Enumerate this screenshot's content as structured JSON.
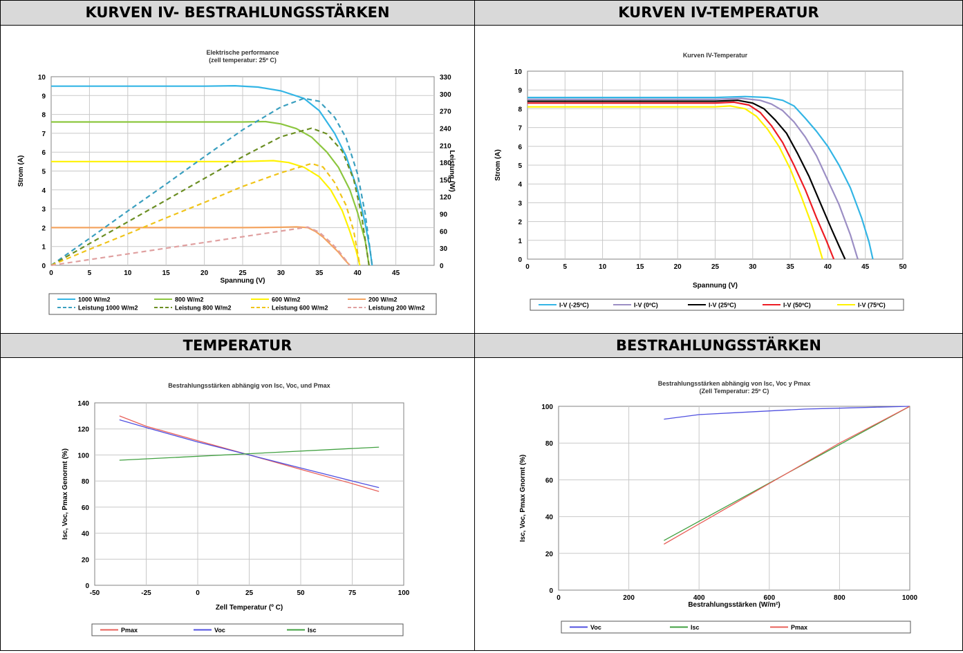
{
  "panels": [
    {
      "header": "KURVEN IV- BESTRAHLUNGSSTÄRKEN"
    },
    {
      "header": "KURVEN IV-TEMPERATUR"
    },
    {
      "header": "TEMPERATUR"
    },
    {
      "header": "BESTRAHLUNGSSTÄRKEN"
    }
  ],
  "chart_data": [
    {
      "type": "line",
      "title": "Elektrische performance",
      "subtitle": "(zell temperatur: 25º C)",
      "xlabel": "Spannung (V)",
      "ylabel": "Strom (A)",
      "y2label": "Leistung (W)",
      "xlim": [
        0,
        50
      ],
      "ylim": [
        0,
        10
      ],
      "y2lim": [
        0,
        330
      ],
      "xticks": [
        0,
        5,
        10,
        15,
        20,
        25,
        30,
        35,
        40,
        45
      ],
      "yticks": [
        0,
        1,
        2,
        3,
        4,
        5,
        6,
        7,
        8,
        9,
        10
      ],
      "y2ticks": [
        0,
        30,
        60,
        90,
        120,
        150,
        180,
        210,
        240,
        270,
        300,
        330
      ],
      "grid": true,
      "legend": "bottom",
      "series": [
        {
          "name": "1000 W/m2",
          "color": "#33b5e5",
          "dash": false,
          "axis": "left",
          "x": [
            0,
            20,
            24,
            27,
            30,
            33,
            35,
            37,
            38.5,
            40,
            41,
            41.6,
            41.9
          ],
          "y": [
            9.5,
            9.5,
            9.52,
            9.45,
            9.25,
            8.85,
            8.2,
            7.0,
            5.8,
            4.0,
            2.2,
            0.9,
            0
          ]
        },
        {
          "name": "800 W/m2",
          "color": "#8cc63f",
          "dash": false,
          "axis": "left",
          "x": [
            0,
            25,
            28,
            30,
            32,
            34,
            36,
            37.5,
            39,
            40,
            41,
            41.5
          ],
          "y": [
            7.6,
            7.6,
            7.62,
            7.5,
            7.25,
            6.8,
            6.0,
            5.2,
            4.0,
            2.8,
            1.3,
            0
          ]
        },
        {
          "name": "600 W/m2",
          "color": "#fff200",
          "dash": false,
          "axis": "left",
          "x": [
            0,
            25,
            29,
            31,
            33,
            35,
            36.5,
            38,
            39,
            39.8,
            40.3
          ],
          "y": [
            5.5,
            5.5,
            5.55,
            5.45,
            5.2,
            4.7,
            4.0,
            2.9,
            1.8,
            0.8,
            0
          ]
        },
        {
          "name": "200 W/m2",
          "color": "#f4a460",
          "dash": false,
          "axis": "left",
          "x": [
            0,
            25,
            30,
            32,
            33.5,
            34.5,
            35.5,
            36.5,
            37.5,
            38.3,
            39
          ],
          "y": [
            2.0,
            2.0,
            2.02,
            2.04,
            2.0,
            1.8,
            1.5,
            1.1,
            0.7,
            0.3,
            0
          ]
        },
        {
          "name": "Leistung 1000 W/m2",
          "color": "#3a9fbf",
          "dash": true,
          "axis": "right",
          "x": [
            0,
            5,
            10,
            15,
            20,
            25,
            30,
            33,
            35,
            37,
            38.5,
            40,
            41,
            41.9
          ],
          "y": [
            0,
            47,
            95,
            142,
            190,
            237,
            277,
            292,
            287,
            259,
            223,
            160,
            90,
            0
          ]
        },
        {
          "name": "Leistung 800 W/m2",
          "color": "#6b8e23",
          "dash": true,
          "axis": "right",
          "x": [
            0,
            5,
            10,
            15,
            20,
            25,
            30,
            34,
            36,
            38,
            39.5,
            40.5,
            41.5
          ],
          "y": [
            0,
            38,
            76,
            114,
            152,
            190,
            225,
            240,
            230,
            200,
            150,
            90,
            0
          ]
        },
        {
          "name": "Leistung 600 W/m2",
          "color": "#f0c419",
          "dash": true,
          "axis": "right",
          "x": [
            0,
            5,
            10,
            15,
            20,
            25,
            30,
            34,
            35.5,
            37,
            38.5,
            39.5,
            40.3
          ],
          "y": [
            0,
            28,
            55,
            83,
            110,
            138,
            162,
            178,
            172,
            145,
            105,
            60,
            0
          ]
        },
        {
          "name": "Leistung 200 W/m2",
          "color": "#e0a0a0",
          "dash": true,
          "axis": "right",
          "x": [
            0,
            5,
            10,
            15,
            20,
            25,
            30,
            33.5,
            35,
            36.5,
            37.5,
            38.3,
            39
          ],
          "y": [
            0,
            10,
            20,
            30,
            40,
            50,
            60,
            67,
            58,
            40,
            26,
            12,
            0
          ]
        }
      ]
    },
    {
      "type": "line",
      "title": "Kurven IV-Temperatur",
      "subtitle": "",
      "xlabel": "Spannung (V)",
      "ylabel": "Strom (A)",
      "xlim": [
        0,
        50
      ],
      "ylim": [
        0,
        10
      ],
      "xticks": [
        0,
        5,
        10,
        15,
        20,
        25,
        30,
        35,
        40,
        45,
        50
      ],
      "yticks": [
        0,
        1,
        2,
        3,
        4,
        5,
        6,
        7,
        8,
        9,
        10
      ],
      "grid": true,
      "legend": "bottom",
      "series": [
        {
          "name": "I-V (-25ºC)",
          "color": "#33b5e5",
          "x": [
            0,
            25,
            29,
            32,
            34,
            35.5,
            37,
            38.5,
            40,
            41.5,
            43,
            44.5,
            45.5,
            46
          ],
          "y": [
            8.6,
            8.6,
            8.65,
            8.6,
            8.45,
            8.15,
            7.5,
            6.8,
            6.0,
            5.0,
            3.8,
            2.2,
            0.9,
            0
          ]
        },
        {
          "name": "I-V (0ºC)",
          "color": "#9b8ec4",
          "x": [
            0,
            25,
            28.5,
            31,
            32.5,
            34,
            35.5,
            37,
            38.5,
            40,
            41.5,
            43,
            44
          ],
          "y": [
            8.5,
            8.5,
            8.55,
            8.45,
            8.25,
            7.9,
            7.3,
            6.5,
            5.5,
            4.2,
            2.9,
            1.3,
            0
          ]
        },
        {
          "name": "I-V (25ºC)",
          "color": "#000000",
          "x": [
            0,
            25,
            28,
            30,
            31.5,
            33,
            34.5,
            36,
            37.5,
            39,
            40.5,
            41.5,
            42.3
          ],
          "y": [
            8.4,
            8.4,
            8.45,
            8.3,
            8.0,
            7.4,
            6.7,
            5.6,
            4.4,
            3.0,
            1.6,
            0.7,
            0
          ]
        },
        {
          "name": "I-V (50ºC)",
          "color": "#ed1c24",
          "x": [
            0,
            25,
            27.5,
            29.5,
            31,
            32.5,
            34,
            35.5,
            37,
            38.5,
            39.8,
            40.8
          ],
          "y": [
            8.3,
            8.3,
            8.35,
            8.2,
            7.8,
            7.1,
            6.2,
            5.0,
            3.7,
            2.2,
            1.0,
            0
          ]
        },
        {
          "name": "I-V (75ºC)",
          "color": "#fff200",
          "x": [
            0,
            25,
            27,
            29,
            30.5,
            32,
            33.5,
            35,
            36.5,
            37.8,
            38.7,
            39.3
          ],
          "y": [
            8.1,
            8.1,
            8.15,
            8.0,
            7.6,
            6.9,
            6.0,
            4.8,
            3.3,
            1.9,
            0.8,
            0
          ]
        }
      ]
    },
    {
      "type": "line",
      "title": "Bestrahlungsstärken abhängig von Isc, Voc, und Pmax",
      "subtitle": "",
      "xlabel": "Zell Temperatur (º C)",
      "ylabel": "Isc, Voc, Pmax Genormt (%)",
      "xlim": [
        -50,
        100
      ],
      "ylim": [
        0,
        140
      ],
      "xticks": [
        -50,
        -25,
        0,
        25,
        50,
        75,
        100
      ],
      "yticks": [
        0,
        20,
        40,
        60,
        80,
        100,
        120,
        140
      ],
      "grid": true,
      "legend": "bottom",
      "series": [
        {
          "name": "Pmax",
          "color": "#e8605a",
          "x": [
            -38,
            -25,
            0,
            25,
            50,
            75,
            88
          ],
          "y": [
            130,
            122,
            111,
            100,
            89,
            78,
            72
          ]
        },
        {
          "name": "Voc",
          "color": "#5050e0",
          "x": [
            -38,
            -25,
            0,
            25,
            50,
            75,
            88
          ],
          "y": [
            127,
            121,
            110,
            100,
            90,
            80,
            75
          ]
        },
        {
          "name": "Isc",
          "color": "#40a040",
          "x": [
            -38,
            88
          ],
          "y": [
            96,
            106
          ]
        }
      ]
    },
    {
      "type": "line",
      "title": "Bestrahlungsstärken abhängig von Isc, Voc y Pmax",
      "subtitle": "(Zell Temperatur: 25º C)",
      "xlabel": "Bestrahlungsstärken (W/m²)",
      "ylabel": "Isc, Voc, Pmax Gnormt (%)",
      "xlim": [
        0,
        1000
      ],
      "ylim": [
        0,
        100
      ],
      "xticks": [
        0,
        200,
        400,
        600,
        800,
        1000
      ],
      "yticks": [
        0,
        20,
        40,
        60,
        80,
        100
      ],
      "grid": true,
      "legend": "bottom",
      "series": [
        {
          "name": "Voc",
          "color": "#5050e0",
          "x": [
            300,
            400,
            500,
            600,
            700,
            800,
            900,
            1000
          ],
          "y": [
            93,
            95.5,
            96.5,
            97.5,
            98.5,
            99,
            99.5,
            100
          ]
        },
        {
          "name": "Isc",
          "color": "#40a040",
          "x": [
            300,
            1000
          ],
          "y": [
            27,
            100
          ]
        },
        {
          "name": "Pmax",
          "color": "#e8605a",
          "x": [
            300,
            400,
            500,
            600,
            700,
            800,
            900,
            1000
          ],
          "y": [
            25,
            36,
            47,
            58,
            69,
            80,
            90,
            100
          ]
        }
      ]
    }
  ]
}
